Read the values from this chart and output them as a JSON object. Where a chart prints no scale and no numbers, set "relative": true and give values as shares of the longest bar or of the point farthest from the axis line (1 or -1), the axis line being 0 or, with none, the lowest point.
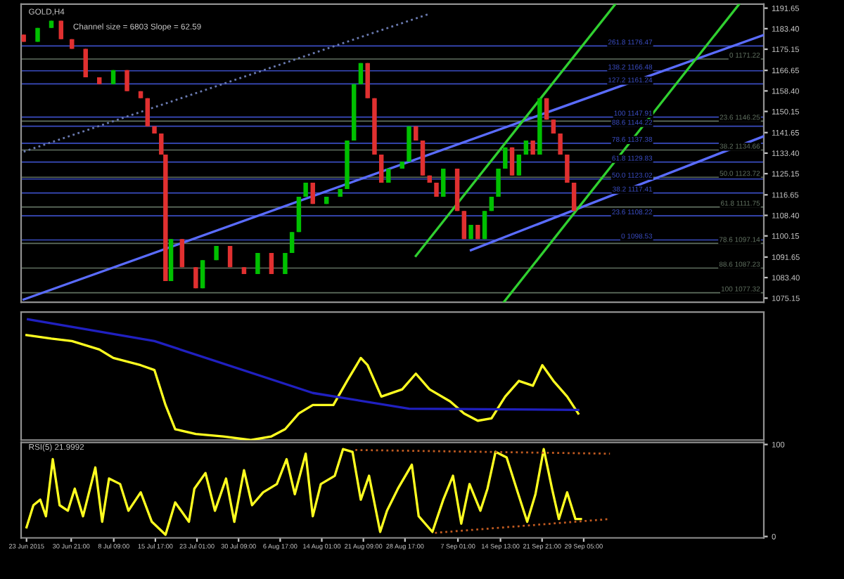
{
  "chart_data": [
    {
      "type": "candlestick",
      "title": "GOLD,H4",
      "subtitle": "Channel size = 6803 Slope = 62.59",
      "x": [
        "2015-06-22T12:00",
        "2015-06-24T23:00",
        "2015-06-27T09:00",
        "2015-06-29T02:00",
        "2015-07-01T00:00",
        "2015-07-03T10:00",
        "2015-07-05T20:00",
        "2015-07-08T07:00",
        "2015-07-10T17:00",
        "2015-07-13T03:00",
        "2015-07-14T08:00",
        "2015-07-15T13:00",
        "2015-07-16T18:00",
        "2015-07-17T12:00",
        "2015-07-18T11:00",
        "2015-07-20T10:00",
        "2015-07-22T20:00",
        "2015-07-24T01:00",
        "2015-07-26T11:00",
        "2015-07-28T21:00",
        "2015-07-31T08:00",
        "2015-08-02T18:00",
        "2015-08-05T04:00",
        "2015-08-07T14:00",
        "2015-08-08T19:00",
        "2015-08-10T00:00",
        "2015-08-11T05:00",
        "2015-08-12T11:00",
        "2015-08-14T21:00",
        "2015-08-17T07:00",
        "2015-08-18T12:00",
        "2015-08-19T17:00",
        "2015-08-20T22:00",
        "2015-08-22T03:00",
        "2015-08-23T08:00",
        "2015-08-24T13:00",
        "2015-08-25T19:00",
        "2015-08-28T05:00",
        "2015-08-29T10:00",
        "2015-08-30T15:00",
        "2015-08-31T20:00",
        "2015-09-02T01:00",
        "2015-09-03T06:00",
        "2015-09-04T11:00",
        "2015-09-06T22:00",
        "2015-09-08T03:00",
        "2015-09-09T08:00",
        "2015-09-10T13:00",
        "2015-09-11T18:00",
        "2015-09-12T23:00",
        "2015-09-14T04:00",
        "2015-09-15T09:00",
        "2015-09-16T14:00",
        "2015-09-17T19:00",
        "2015-09-19T01:00",
        "2015-09-20T06:00",
        "2015-09-21T11:00",
        "2015-09-22T16:00",
        "2015-09-23T21:00",
        "2015-09-25T02:00",
        "2015-09-26T07:00",
        "2015-09-27T12:00"
      ],
      "ohlc": [
        [
          1181.0,
          1181.0,
          1178.1,
          1178.1
        ],
        [
          1178.1,
          1183.7,
          1178.1,
          1183.7
        ],
        [
          1183.7,
          1186.6,
          1183.7,
          1186.6
        ],
        [
          1186.6,
          1186.6,
          1179.2,
          1179.2
        ],
        [
          1179.2,
          1179.2,
          1175.3,
          1175.3
        ],
        [
          1175.3,
          1175.3,
          1163.9,
          1163.9
        ],
        [
          1163.9,
          1163.9,
          1161.1,
          1161.1
        ],
        [
          1161.1,
          1166.8,
          1161.1,
          1166.8
        ],
        [
          1166.8,
          1166.8,
          1158.3,
          1158.3
        ],
        [
          1158.3,
          1158.3,
          1155.5,
          1155.5
        ],
        [
          1155.5,
          1155.5,
          1144.2,
          1144.2
        ],
        [
          1144.2,
          1144.2,
          1141.3,
          1141.3
        ],
        [
          1141.3,
          1141.3,
          1132.8,
          1132.8
        ],
        [
          1132.8,
          1132.8,
          1082.0,
          1082.0
        ],
        [
          1082.0,
          1098.9,
          1082.0,
          1098.9
        ],
        [
          1098.9,
          1098.9,
          1087.6,
          1087.6
        ],
        [
          1087.6,
          1087.6,
          1079.1,
          1079.1
        ],
        [
          1079.1,
          1090.4,
          1079.1,
          1090.4
        ],
        [
          1090.4,
          1096.1,
          1090.4,
          1096.1
        ],
        [
          1096.1,
          1096.1,
          1087.6,
          1087.6
        ],
        [
          1087.6,
          1087.6,
          1084.8,
          1084.8
        ],
        [
          1084.8,
          1093.3,
          1084.8,
          1093.3
        ],
        [
          1093.3,
          1093.3,
          1084.8,
          1084.8
        ],
        [
          1084.8,
          1093.3,
          1084.8,
          1093.3
        ],
        [
          1093.3,
          1101.7,
          1093.3,
          1101.7
        ],
        [
          1101.7,
          1115.9,
          1101.7,
          1115.9
        ],
        [
          1115.9,
          1121.5,
          1115.9,
          1121.5
        ],
        [
          1121.5,
          1121.5,
          1113.0,
          1113.0
        ],
        [
          1113.0,
          1115.9,
          1113.0,
          1115.9
        ],
        [
          1115.9,
          1119.0,
          1115.9,
          1119.0
        ],
        [
          1119.0,
          1138.5,
          1119.0,
          1138.5
        ],
        [
          1138.5,
          1161.1,
          1138.5,
          1161.1
        ],
        [
          1161.1,
          1169.6,
          1161.1,
          1169.6
        ],
        [
          1169.6,
          1169.6,
          1155.5,
          1155.5
        ],
        [
          1155.5,
          1155.5,
          1132.8,
          1132.8
        ],
        [
          1132.8,
          1132.8,
          1121.5,
          1121.5
        ],
        [
          1121.5,
          1127.2,
          1121.5,
          1127.2
        ],
        [
          1127.2,
          1130.0,
          1127.2,
          1130.0
        ],
        [
          1130.0,
          1144.2,
          1130.0,
          1144.2
        ],
        [
          1144.2,
          1144.2,
          1138.5,
          1138.5
        ],
        [
          1138.5,
          1138.5,
          1124.4,
          1124.4
        ],
        [
          1124.4,
          1124.4,
          1121.5,
          1121.5
        ],
        [
          1121.5,
          1121.5,
          1115.9,
          1115.9
        ],
        [
          1115.9,
          1127.2,
          1115.9,
          1127.2
        ],
        [
          1127.2,
          1127.2,
          1110.2,
          1110.2
        ],
        [
          1110.2,
          1110.2,
          1098.9,
          1098.9
        ],
        [
          1098.9,
          1104.6,
          1098.9,
          1104.6
        ],
        [
          1104.6,
          1104.6,
          1098.9,
          1098.9
        ],
        [
          1098.9,
          1110.2,
          1098.9,
          1110.2
        ],
        [
          1110.2,
          1115.9,
          1110.2,
          1115.9
        ],
        [
          1115.9,
          1127.2,
          1115.9,
          1127.2
        ],
        [
          1127.2,
          1135.7,
          1127.2,
          1135.7
        ],
        [
          1135.7,
          1135.7,
          1124.4,
          1124.4
        ],
        [
          1124.4,
          1132.8,
          1124.4,
          1132.8
        ],
        [
          1132.8,
          1138.5,
          1132.8,
          1138.5
        ],
        [
          1138.5,
          1138.5,
          1132.8,
          1132.8
        ],
        [
          1132.8,
          1155.5,
          1132.8,
          1155.5
        ],
        [
          1155.5,
          1155.5,
          1146.9,
          1146.9
        ],
        [
          1146.9,
          1146.9,
          1141.3,
          1141.3
        ],
        [
          1141.3,
          1141.3,
          1132.8,
          1132.8
        ],
        [
          1132.8,
          1132.8,
          1121.5,
          1121.5
        ],
        [
          1121.5,
          1121.5,
          1110.2,
          1110.2
        ]
      ],
      "colors": [
        "#e03030",
        "#00c000",
        "#00c000",
        "#e03030",
        "#e03030",
        "#e03030",
        "#e03030",
        "#00c000",
        "#e03030",
        "#e03030",
        "#e03030",
        "#e03030",
        "#e03030",
        "#e03030",
        "#00c000",
        "#e03030",
        "#e03030",
        "#00c000",
        "#00c000",
        "#e03030",
        "#e03030",
        "#00c000",
        "#e03030",
        "#00c000",
        "#00c000",
        "#00c000",
        "#00c000",
        "#e03030",
        "#00c000",
        "#00c000",
        "#00c000",
        "#00c000",
        "#00c000",
        "#e03030",
        "#e03030",
        "#e03030",
        "#00c000",
        "#00c000",
        "#00c000",
        "#e03030",
        "#e03030",
        "#e03030",
        "#e03030",
        "#00c000",
        "#e03030",
        "#e03030",
        "#00c000",
        "#e03030",
        "#00c000",
        "#00c000",
        "#00c000",
        "#00c000",
        "#e03030",
        "#00c000",
        "#00c000",
        "#e03030",
        "#00c000",
        "#e03030",
        "#e03030",
        "#e03030",
        "#e03030",
        "#e03030"
      ],
      "series": [
        {
          "type": "line",
          "color": "#5a6cff",
          "x": [
            "2015-06-22T12:00",
            "2015-10-30T23:00"
          ],
          "values": [
            1074.6,
            1180.9
          ]
        },
        {
          "type": "line",
          "color": "#5a6cff",
          "x": [
            "2015-09-09T08:00",
            "2015-10-30T23:00"
          ],
          "values": [
            1094.4,
            1140.2
          ]
        },
        {
          "type": "line",
          "color": "#30d030",
          "x": [
            "2015-08-30T15:00",
            "2015-10-04T19:00"
          ],
          "values": [
            1092.1,
            1193.3
          ]
        },
        {
          "type": "line",
          "color": "#30d030",
          "x": [
            "2015-09-15T03:00",
            "2015-10-26T15:00"
          ],
          "values": [
            1073.5,
            1193.3
          ]
        },
        {
          "type": "line",
          "color": "#6a7ab0",
          "line_style": "dotted",
          "x": [
            "2015-06-22T12:00",
            "2015-09-02T01:00"
          ],
          "values": [
            1134.0,
            1189.4
          ]
        }
      ],
      "ref_lines": [
        {
          "axis": "y",
          "value": 1176.47,
          "label": "261.8 1176.47",
          "color": "#3a4cc0"
        },
        {
          "axis": "y",
          "value": 1166.48,
          "label": "138.2 1166.48",
          "color": "#3a4cc0"
        },
        {
          "axis": "y",
          "value": 1161.24,
          "label": "127.2 1161.24",
          "color": "#3a4cc0"
        },
        {
          "axis": "y",
          "value": 1147.91,
          "label": "100 1147.91",
          "color": "#3a4cc0"
        },
        {
          "axis": "y",
          "value": 1144.22,
          "label": "88.6 1144.22",
          "color": "#3a4cc0"
        },
        {
          "axis": "y",
          "value": 1137.38,
          "label": "78.6 1137.38",
          "color": "#3a4cc0"
        },
        {
          "axis": "y",
          "value": 1129.83,
          "label": "61.8 1129.83",
          "color": "#3a4cc0"
        },
        {
          "axis": "y",
          "value": 1123.02,
          "label": "50.0 1123.02",
          "color": "#3a4cc0"
        },
        {
          "axis": "y",
          "value": 1117.41,
          "label": "38.2 1117.41",
          "color": "#3a4cc0"
        },
        {
          "axis": "y",
          "value": 1108.22,
          "label": "23.6 1108.22",
          "color": "#3a4cc0"
        },
        {
          "axis": "y",
          "value": 1098.53,
          "label": "0 1098.53",
          "color": "#3a4cc0"
        },
        {
          "axis": "y",
          "value": 1171.22,
          "label": "0 1171.22",
          "color": "#607060"
        },
        {
          "axis": "y",
          "value": 1146.25,
          "label": "23.6 1146.25",
          "color": "#607060"
        },
        {
          "axis": "y",
          "value": 1134.66,
          "label": "38.2 1134.66",
          "color": "#607060"
        },
        {
          "axis": "y",
          "value": 1123.72,
          "label": "50.0 1123.72",
          "color": "#607060"
        },
        {
          "axis": "y",
          "value": 1111.75,
          "label": "61.8 1111.75",
          "color": "#607060"
        },
        {
          "axis": "y",
          "value": 1097.14,
          "label": "78.6 1097.14",
          "color": "#607060"
        },
        {
          "axis": "y",
          "value": 1087.23,
          "label": "88.6 1087.23",
          "color": "#607060"
        },
        {
          "axis": "y",
          "value": 1077.32,
          "label": "100 1077.32",
          "color": "#607060"
        }
      ],
      "xlim": [
        "2015-06-22T01:00",
        "2015-10-30T23:00"
      ],
      "ylim": [
        1073.5,
        1193.3
      ],
      "yticks": [
        {
          "value": 1191.65,
          "label": "1191.65"
        },
        {
          "value": 1183.4,
          "label": "1183.40"
        },
        {
          "value": 1175.15,
          "label": "1175.15"
        },
        {
          "value": 1166.65,
          "label": "1166.65"
        },
        {
          "value": 1158.4,
          "label": "1158.40"
        },
        {
          "value": 1150.15,
          "label": "1150.15"
        },
        {
          "value": 1141.65,
          "label": "1141.65"
        },
        {
          "value": 1133.4,
          "label": "1133.40"
        },
        {
          "value": 1125.15,
          "label": "1125.15"
        },
        {
          "value": 1116.65,
          "label": "1116.65"
        },
        {
          "value": 1108.4,
          "label": "1108.40"
        },
        {
          "value": 1100.15,
          "label": "1100.15"
        },
        {
          "value": 1091.65,
          "label": "1091.65"
        },
        {
          "value": 1083.4,
          "label": "1083.40"
        },
        {
          "value": 1075.15,
          "label": "1075.15"
        }
      ],
      "tick_labels": "y"
    },
    {
      "type": "line",
      "relative": true,
      "xlim": [
        "2015-06-22T01:00",
        "2015-10-30T23:00"
      ],
      "tick_labels": false,
      "series": [
        {
          "color": "#ffff20",
          "x": [
            "2015-06-23T00:00",
            "2015-06-27T09:00",
            "2015-07-01T00:00",
            "2015-07-05T20:00",
            "2015-07-08T07:00",
            "2015-07-13T03:00",
            "2015-07-15T13:00",
            "2015-07-17T12:00",
            "2015-07-19T05:00",
            "2015-07-22T20:00",
            "2015-07-27T16:00",
            "2015-08-01T13:00",
            "2015-08-05T04:00",
            "2015-08-07T14:00",
            "2015-08-10T00:00",
            "2015-08-12T11:00",
            "2015-08-16T02:00",
            "2015-08-18T12:00",
            "2015-08-20T22:00",
            "2015-08-22T03:00",
            "2015-08-24T13:00",
            "2015-08-28T05:00",
            "2015-08-30T15:00",
            "2015-09-02T01:00",
            "2015-09-05T16:00",
            "2015-09-08T03:00",
            "2015-09-10T13:00",
            "2015-09-12T23:00",
            "2015-09-15T09:00",
            "2015-09-17T19:00",
            "2015-09-20T06:00",
            "2015-09-21T22:00",
            "2015-09-23T21:00",
            "2015-09-26T07:00",
            "2015-09-28T06:00"
          ],
          "values": [
            0.87,
            0.84,
            0.82,
            0.75,
            0.68,
            0.62,
            0.58,
            0.29,
            0.09,
            0.05,
            0.03,
            0,
            0.03,
            0.09,
            0.22,
            0.29,
            0.29,
            0.49,
            0.68,
            0.62,
            0.36,
            0.42,
            0.55,
            0.42,
            0.32,
            0.22,
            0.16,
            0.18,
            0.36,
            0.49,
            0.45,
            0.62,
            0.49,
            0.36,
            0.22
          ]
        },
        {
          "color": "#2020c0",
          "x": [
            "2015-06-23T06:00",
            "2015-07-15T13:00",
            "2015-08-12T11:00",
            "2015-08-29T10:00",
            "2015-09-28T06:00"
          ],
          "values": [
            1,
            0.82,
            0.39,
            0.26,
            0.25
          ]
        }
      ]
    },
    {
      "type": "line",
      "title": "RSI(5) 21.9992",
      "xlim": [
        "2015-06-22T01:00",
        "2015-10-30T23:00"
      ],
      "ylim": [
        -1.5,
        102.3
      ],
      "yticks": [
        0,
        100
      ],
      "xticks": [
        {
          "value": "2015-06-23T00:00",
          "label": "23 Jun 2015"
        },
        {
          "value": "2015-06-30T21:00",
          "label": "30 Jun 21:00"
        },
        {
          "value": "2015-07-08T09:00",
          "label": "8 Jul 09:00"
        },
        {
          "value": "2015-07-15T17:00",
          "label": "15 Jul 17:00"
        },
        {
          "value": "2015-07-23T01:00",
          "label": "23 Jul 01:00"
        },
        {
          "value": "2015-07-30T09:00",
          "label": "30 Jul 09:00"
        },
        {
          "value": "2015-08-06T17:00",
          "label": "6 Aug 17:00"
        },
        {
          "value": "2015-08-14T01:00",
          "label": "14 Aug 01:00"
        },
        {
          "value": "2015-08-21T09:00",
          "label": "21 Aug 09:00"
        },
        {
          "value": "2015-08-28T17:00",
          "label": "28 Aug 17:00"
        },
        {
          "value": "2015-09-07T01:00",
          "label": "7 Sep 01:00"
        },
        {
          "value": "2015-09-14T13:00",
          "label": "14 Sep 13:00"
        },
        {
          "value": "2015-09-21T21:00",
          "label": "21 Sep 21:00"
        },
        {
          "value": "2015-09-29T05:00",
          "label": "29 Sep 05:00"
        }
      ],
      "series": [
        {
          "color": "#ffff20",
          "x": [
            "2015-06-23T00:00",
            "2015-06-24T05:00",
            "2015-06-25T10:00",
            "2015-06-26T10:00",
            "2015-06-27T15:00",
            "2015-06-28T20:00",
            "2015-06-30T07:00",
            "2015-07-01T12:00",
            "2015-07-02T23:00",
            "2015-07-05T03:00",
            "2015-07-06T08:00",
            "2015-07-07T13:00",
            "2015-07-09T12:00",
            "2015-07-10T23:00",
            "2015-07-13T03:00",
            "2015-07-15T02:00",
            "2015-07-17T12:00",
            "2015-07-19T05:00",
            "2015-07-21T15:00",
            "2015-07-22T14:00",
            "2015-07-24T13:00",
            "2015-07-26T05:00",
            "2015-07-28T04:00",
            "2015-07-29T15:00",
            "2015-07-31T08:00",
            "2015-08-01T18:00",
            "2015-08-03T17:00",
            "2015-08-06T03:00",
            "2015-08-07T20:00",
            "2015-08-09T07:00",
            "2015-08-11T05:00",
            "2015-08-12T11:00",
            "2015-08-13T21:00",
            "2015-08-16T08:00",
            "2015-08-17T19:00",
            "2015-08-19T11:00",
            "2015-08-20T22:00",
            "2015-08-22T09:00",
            "2015-08-24T08:00",
            "2015-08-25T13:00",
            "2015-08-27T11:00",
            "2015-08-29T22:00",
            "2015-08-31T03:00",
            "2015-09-02T13:00",
            "2015-09-04T11:00",
            "2015-09-06T04:00",
            "2015-09-07T15:00",
            "2015-09-09T02:00",
            "2015-09-11T00:00",
            "2015-09-12T06:00",
            "2015-09-13T16:00",
            "2015-09-15T15:00",
            "2015-09-17T14:00",
            "2015-09-19T06:00",
            "2015-09-20T17:00",
            "2015-09-22T04:00",
            "2015-09-23T15:00",
            "2015-09-24T20:00",
            "2015-09-26T07:00",
            "2015-09-27T18:00",
            "2015-09-28T17:00"
          ],
          "values": [
            10,
            34,
            40,
            22,
            84,
            34,
            28,
            52,
            22,
            75,
            16,
            63,
            57,
            28,
            48,
            16,
            2,
            37,
            16,
            52,
            69,
            28,
            63,
            16,
            72,
            34,
            48,
            57,
            84,
            46,
            90,
            22,
            57,
            66,
            95,
            92,
            40,
            66,
            5,
            28,
            52,
            78,
            22,
            5,
            40,
            66,
            14,
            57,
            28,
            52,
            92,
            86,
            48,
            16,
            46,
            95,
            52,
            19,
            48,
            19,
            19
          ]
        },
        {
          "color": "#c05a20",
          "line_style": "dotted",
          "x": [
            "2015-08-19T23:00",
            "2015-10-03T20:00"
          ],
          "values": [
            94,
            90
          ]
        },
        {
          "color": "#c05a20",
          "line_style": "dotted",
          "x": [
            "2015-09-03T00:00",
            "2015-10-03T20:00"
          ],
          "values": [
            4,
            19
          ]
        }
      ]
    }
  ]
}
